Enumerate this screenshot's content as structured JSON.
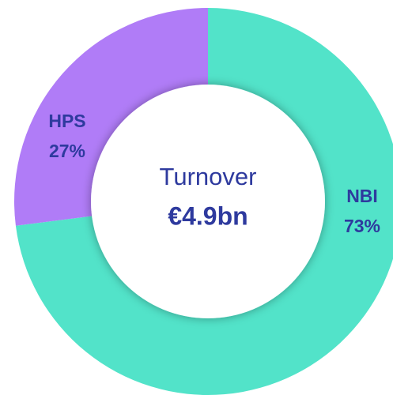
{
  "chart_data": {
    "type": "donut",
    "categories": [
      "NBI",
      "HPS"
    ],
    "values": [
      73,
      27
    ],
    "value_labels": [
      "73%",
      "27%"
    ],
    "colors": [
      "#52e3c9",
      "#b07cf7"
    ],
    "center_text": [
      "Turnover",
      "€4.9bn"
    ]
  }
}
